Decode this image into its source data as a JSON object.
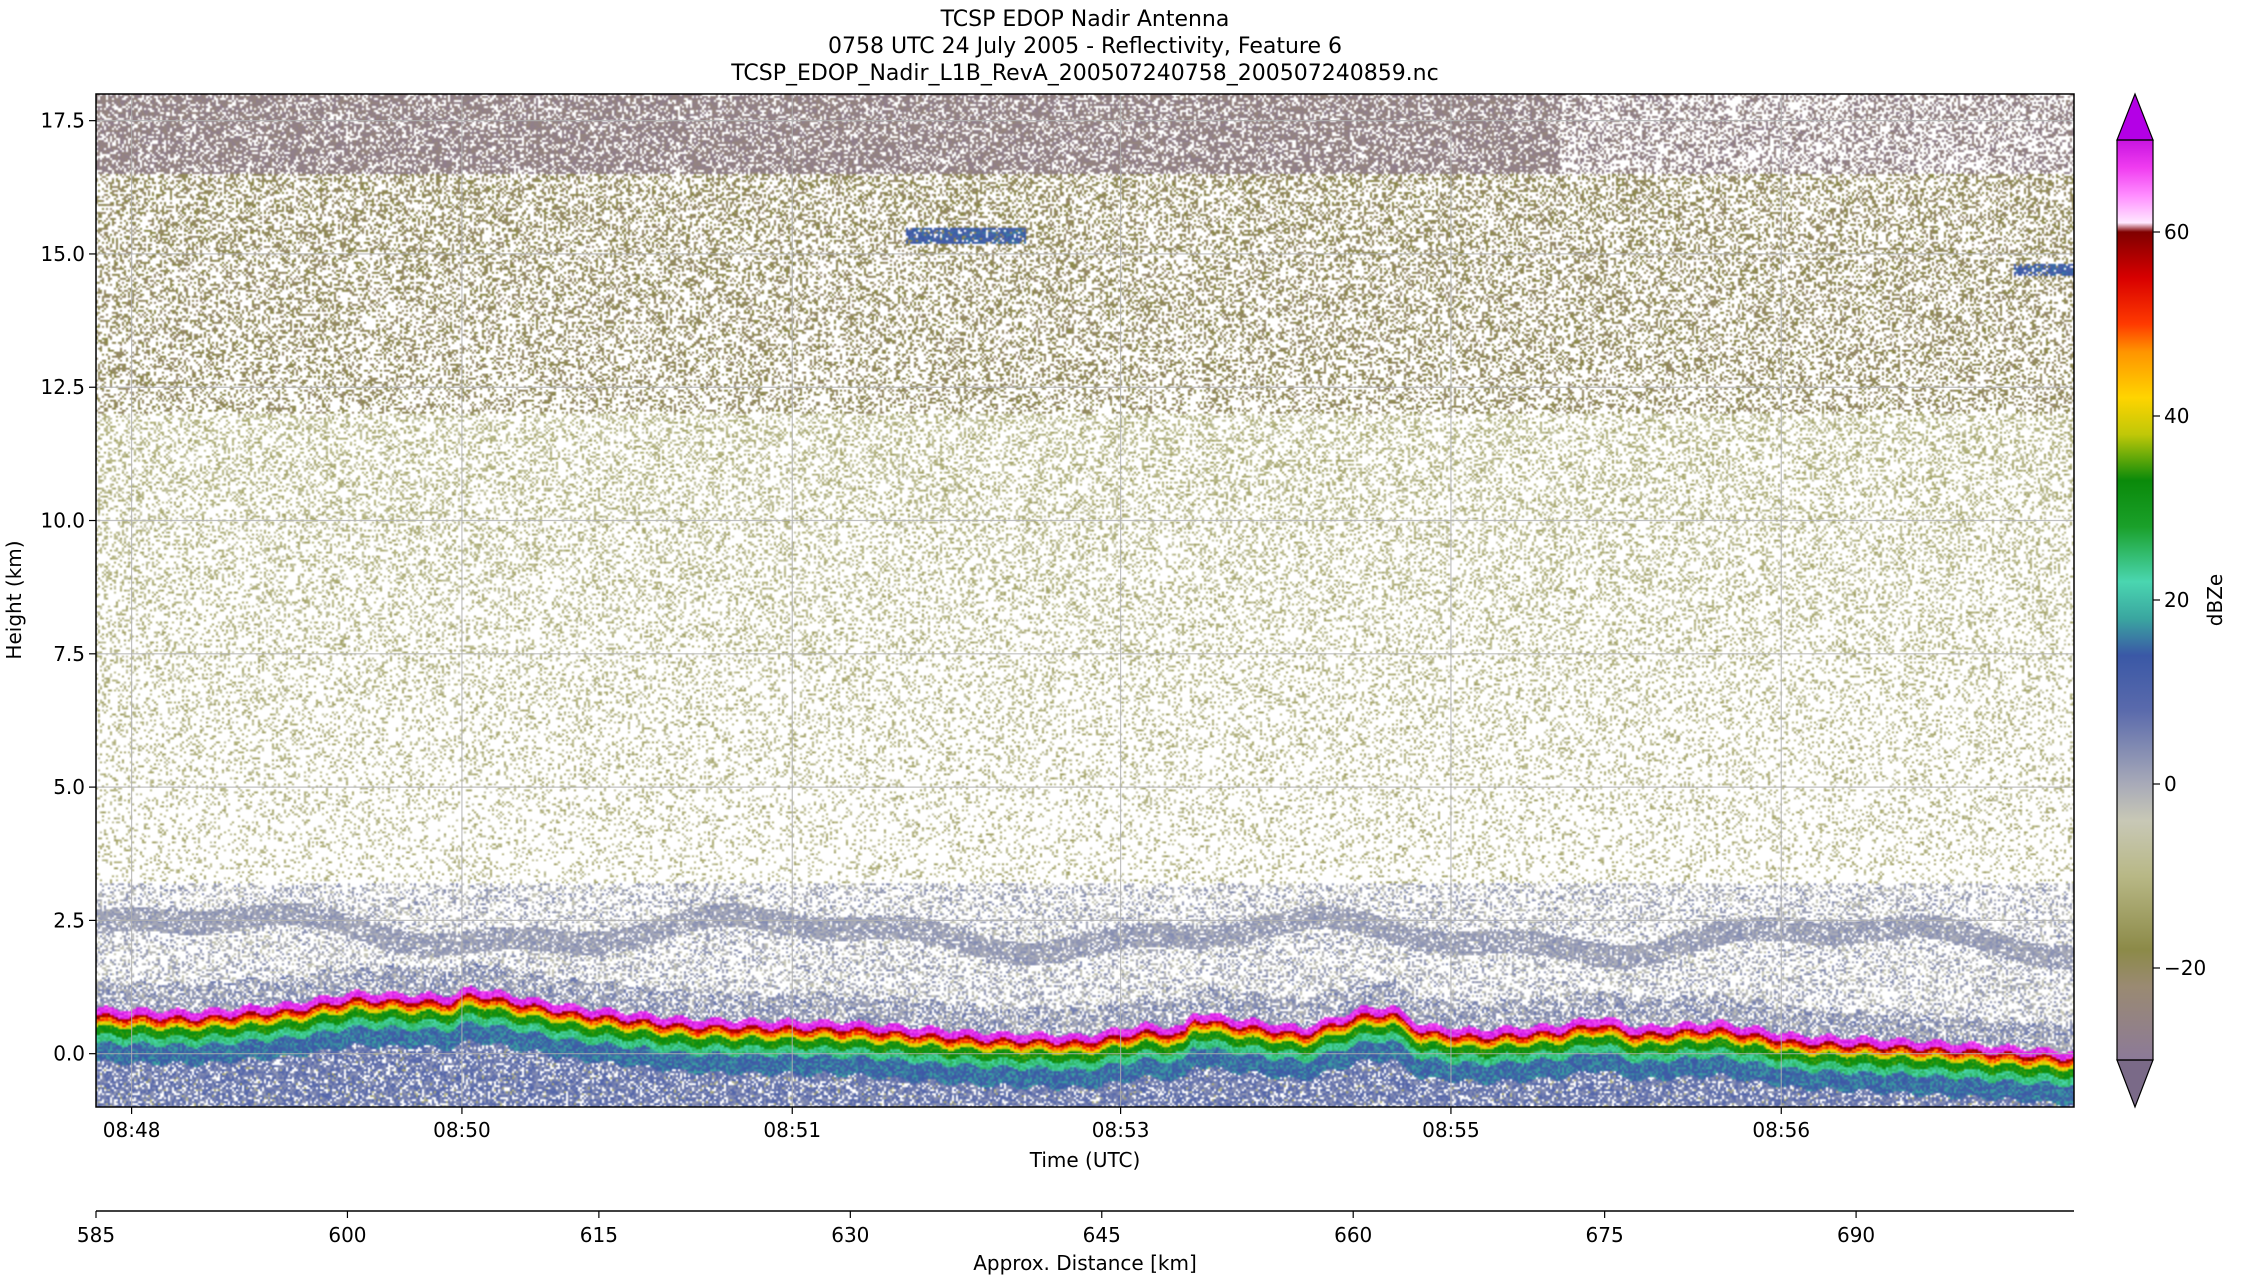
{
  "title_lines": [
    "TCSP EDOP Nadir Antenna",
    "0758 UTC 24 July 2005 - Reflectivity, Feature 6",
    "TCSP_EDOP_Nadir_L1B_RevA_200507240758_200507240859.nc"
  ],
  "chart_data": {
    "type": "heatmap",
    "xlabel": "Time (UTC)",
    "ylabel": "Height (km)",
    "ylim": [
      -1.0,
      18.0
    ],
    "grid": true,
    "x_ticks": [
      {
        "label": "08:48",
        "pos": 0.018
      },
      {
        "label": "08:50",
        "pos": 0.185
      },
      {
        "label": "08:51",
        "pos": 0.352
      },
      {
        "label": "08:53",
        "pos": 0.518
      },
      {
        "label": "08:55",
        "pos": 0.685
      },
      {
        "label": "08:56",
        "pos": 0.852
      }
    ],
    "y_ticks": [
      0.0,
      2.5,
      5.0,
      7.5,
      10.0,
      12.5,
      15.0,
      17.5
    ],
    "y_tick_labels": [
      "0.0",
      "2.5",
      "5.0",
      "7.5",
      "10.0",
      "12.5",
      "15.0",
      "17.5"
    ],
    "distance_axis": {
      "label": "Approx. Distance [km]",
      "range": [
        585,
        703
      ],
      "ticks": [
        585,
        600,
        615,
        630,
        645,
        660,
        675,
        690
      ],
      "tick_labels": [
        "585",
        "600",
        "615",
        "630",
        "645",
        "660",
        "675",
        "690"
      ]
    },
    "colorbar": {
      "label": "dBZe",
      "range": [
        -30,
        70
      ],
      "ticks": [
        -20,
        0,
        20,
        40,
        60
      ],
      "tick_labels": [
        "−20",
        "0",
        "20",
        "40",
        "60"
      ],
      "extend": "both",
      "stops": [
        {
          "v": -30,
          "c": "#8c7a98"
        },
        {
          "v": -22,
          "c": "#9a8a72"
        },
        {
          "v": -18,
          "c": "#8c8a48"
        },
        {
          "v": -10,
          "c": "#b8b886"
        },
        {
          "v": -4,
          "c": "#c8c8b6"
        },
        {
          "v": 0,
          "c": "#a8aab8"
        },
        {
          "v": 8,
          "c": "#5a6aac"
        },
        {
          "v": 14,
          "c": "#3a58a6"
        },
        {
          "v": 18,
          "c": "#3aa6a0"
        },
        {
          "v": 22,
          "c": "#4ad6b0"
        },
        {
          "v": 28,
          "c": "#1aa02a"
        },
        {
          "v": 33,
          "c": "#0a8a0a"
        },
        {
          "v": 38,
          "c": "#c0c808"
        },
        {
          "v": 42,
          "c": "#ffd400"
        },
        {
          "v": 47,
          "c": "#ff9400"
        },
        {
          "v": 50,
          "c": "#ff3a00"
        },
        {
          "v": 55,
          "c": "#d80000"
        },
        {
          "v": 60,
          "c": "#800000"
        },
        {
          "v": 61,
          "c": "#ffe8ff"
        },
        {
          "v": 64,
          "c": "#ff8cff"
        },
        {
          "v": 67,
          "c": "#f03cf0"
        },
        {
          "v": 70,
          "c": "#c814e0"
        }
      ],
      "under_color": "#7a6a88",
      "over_color": "#b400e6"
    },
    "features": {
      "surface_band_height_km": [
        {
          "t": 0.0,
          "h": 0.85
        },
        {
          "t": 0.05,
          "h": 0.8
        },
        {
          "t": 0.1,
          "h": 0.95
        },
        {
          "t": 0.13,
          "h": 1.15
        },
        {
          "t": 0.18,
          "h": 1.1
        },
        {
          "t": 0.19,
          "h": 1.25
        },
        {
          "t": 0.24,
          "h": 0.9
        },
        {
          "t": 0.3,
          "h": 0.65
        },
        {
          "t": 0.38,
          "h": 0.6
        },
        {
          "t": 0.45,
          "h": 0.4
        },
        {
          "t": 0.5,
          "h": 0.35
        },
        {
          "t": 0.53,
          "h": 0.55
        },
        {
          "t": 0.55,
          "h": 0.5
        },
        {
          "t": 0.555,
          "h": 0.8
        },
        {
          "t": 0.57,
          "h": 0.7
        },
        {
          "t": 0.61,
          "h": 0.5
        },
        {
          "t": 0.64,
          "h": 0.85
        },
        {
          "t": 0.655,
          "h": 0.9
        },
        {
          "t": 0.67,
          "h": 0.55
        },
        {
          "t": 0.7,
          "h": 0.45
        },
        {
          "t": 0.74,
          "h": 0.55
        },
        {
          "t": 0.76,
          "h": 0.7
        },
        {
          "t": 0.78,
          "h": 0.5
        },
        {
          "t": 0.82,
          "h": 0.6
        },
        {
          "t": 0.86,
          "h": 0.35
        },
        {
          "t": 0.92,
          "h": 0.25
        },
        {
          "t": 1.0,
          "h": 0.05
        }
      ]
    }
  }
}
